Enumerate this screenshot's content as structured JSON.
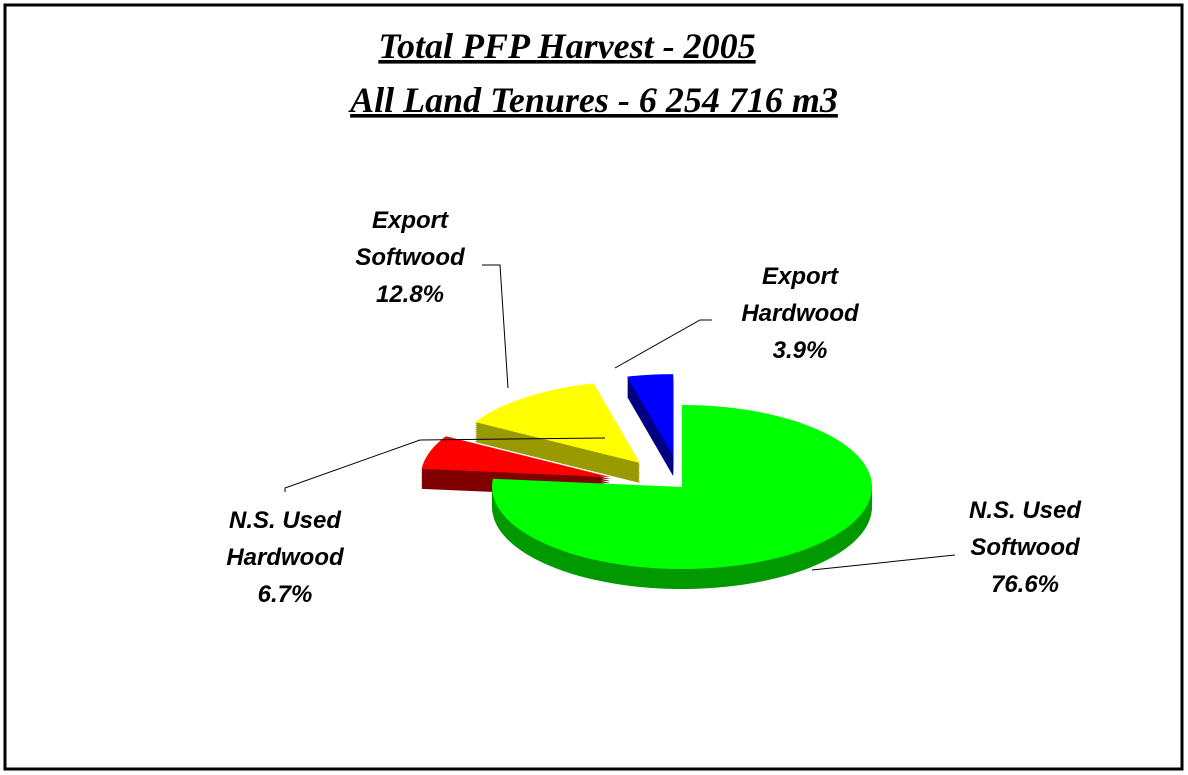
{
  "chart_data": {
    "type": "pie3d",
    "title": "Total PFP Harvest  - 2005",
    "subtitle": "All Land Tenures - 6 254 716 m3",
    "categories": [
      "N.S. Used Softwood",
      "N.S. Used Hardwood",
      "Export Softwood",
      "Export Hardwood"
    ],
    "values": [
      76.6,
      6.7,
      12.8,
      3.9
    ],
    "value_labels": [
      "76.6%",
      "6.7%",
      "12.8%",
      "3.9%"
    ],
    "colors": [
      "#00ff00",
      "#ff0000",
      "#ffff00",
      "#0000ff"
    ],
    "side_colors": [
      "#009900",
      "#800000",
      "#999900",
      "#000080"
    ]
  }
}
